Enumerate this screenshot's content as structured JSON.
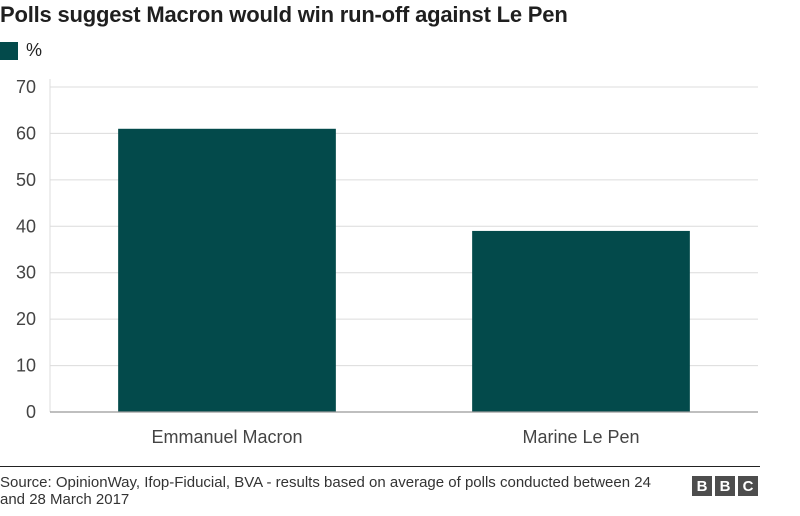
{
  "header": {
    "title": "Polls suggest Macron would win run-off against Le Pen"
  },
  "legend": {
    "label": "%",
    "color": "#034a4b"
  },
  "chart_data": {
    "type": "bar",
    "categories": [
      "Emmanuel Macron",
      "Marine Le Pen"
    ],
    "series": [
      {
        "name": "%",
        "values": [
          61,
          39
        ],
        "color": "#034a4b"
      }
    ],
    "ylim": [
      0,
      70
    ],
    "yticks": [
      0,
      10,
      20,
      30,
      40,
      50,
      60,
      70
    ],
    "grid": true,
    "legend_position": "top-left",
    "xlabel": "",
    "ylabel": ""
  },
  "footer": {
    "source": "Source: OpinionWay, Ifop-Fiducial, BVA - results based on average of polls conducted between 24 and 28 March 2017",
    "logo_letters": [
      "B",
      "B",
      "C"
    ]
  }
}
